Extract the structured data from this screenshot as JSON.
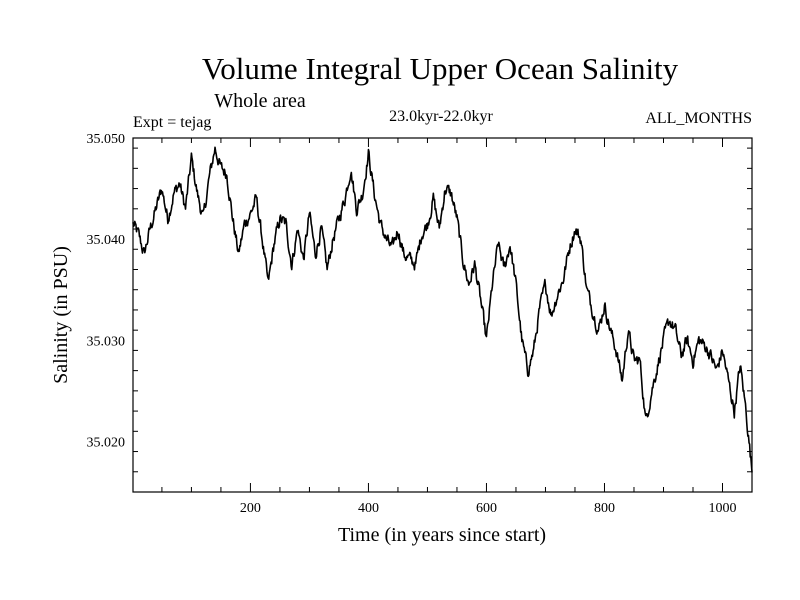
{
  "chart_data": {
    "type": "line",
    "title": "Volume Integral Upper Ocean Salinity",
    "subtitle": "Whole area",
    "experiment_label": "Expt = tejag",
    "period_label": "23.0kyr-22.0kyr",
    "months_label": "ALL_MONTHS",
    "xlabel": "Time (in years since start)",
    "ylabel": "Salinity (in PSU)",
    "xlim": [
      1,
      1050
    ],
    "ylim": [
      35.015,
      35.05
    ],
    "x_ticks": [
      200,
      400,
      600,
      800,
      1000
    ],
    "x_tick_labels": [
      "200",
      "400",
      "600",
      "800",
      "1000"
    ],
    "y_ticks": [
      35.02,
      35.03,
      35.04,
      35.05
    ],
    "y_tick_labels": [
      "35.020",
      "35.030",
      "35.040",
      "35.050"
    ],
    "grid": false,
    "line_color": "#000000",
    "series": [
      {
        "name": "salinity",
        "x": [
          1,
          10,
          20,
          30,
          40,
          50,
          60,
          70,
          80,
          90,
          100,
          110,
          120,
          130,
          140,
          150,
          160,
          170,
          180,
          190,
          200,
          210,
          220,
          230,
          240,
          250,
          260,
          270,
          280,
          290,
          300,
          310,
          320,
          330,
          340,
          350,
          360,
          370,
          380,
          390,
          400,
          410,
          420,
          430,
          440,
          450,
          460,
          470,
          480,
          490,
          500,
          510,
          520,
          530,
          540,
          550,
          560,
          570,
          580,
          590,
          600,
          610,
          620,
          630,
          640,
          650,
          660,
          670,
          680,
          690,
          700,
          710,
          720,
          730,
          740,
          750,
          760,
          770,
          780,
          790,
          800,
          810,
          820,
          830,
          840,
          850,
          860,
          870,
          880,
          890,
          900,
          910,
          920,
          930,
          940,
          950,
          960,
          970,
          980,
          990,
          1000,
          1010,
          1020,
          1030,
          1040,
          1050
        ],
        "values": [
          35.0415,
          35.0405,
          35.0385,
          35.041,
          35.043,
          35.045,
          35.042,
          35.0445,
          35.0455,
          35.043,
          35.048,
          35.0445,
          35.042,
          35.046,
          35.049,
          35.047,
          35.0465,
          35.042,
          35.0385,
          35.0415,
          35.0425,
          35.044,
          35.04,
          35.0355,
          35.0395,
          35.042,
          35.0415,
          35.0375,
          35.041,
          35.038,
          35.0425,
          35.0385,
          35.041,
          35.037,
          35.04,
          35.042,
          35.044,
          35.047,
          35.043,
          35.0445,
          35.0485,
          35.0445,
          35.0415,
          35.04,
          35.039,
          35.041,
          35.0385,
          35.038,
          35.0375,
          35.0405,
          35.0415,
          35.044,
          35.041,
          35.045,
          35.0445,
          35.042,
          35.038,
          35.0355,
          35.0375,
          35.034,
          35.03,
          35.0355,
          35.0395,
          35.037,
          35.0395,
          35.0355,
          35.03,
          35.027,
          35.029,
          35.033,
          35.0355,
          35.0325,
          35.0345,
          35.036,
          35.039,
          35.041,
          35.04,
          35.035,
          35.033,
          35.031,
          35.0335,
          35.031,
          35.029,
          35.026,
          35.031,
          35.028,
          35.028,
          35.022,
          35.025,
          35.0275,
          35.03,
          35.032,
          35.031,
          35.0285,
          35.03,
          35.028,
          35.03,
          35.0295,
          35.0285,
          35.027,
          35.029,
          35.026,
          35.023,
          35.0275,
          35.023,
          35.017
        ]
      }
    ]
  }
}
